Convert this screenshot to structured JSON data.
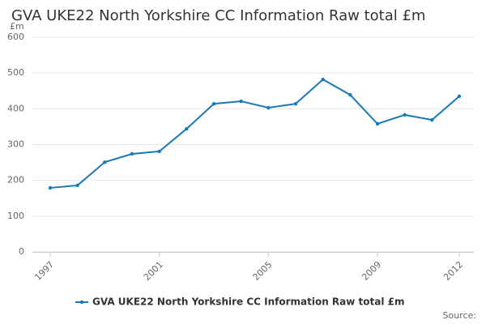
{
  "chart_data": {
    "type": "line",
    "title": "GVA UKE22 North Yorkshire CC Information Raw total £m",
    "y_unit": "£m",
    "source_label": "Source:",
    "x": [
      1997,
      1998,
      1999,
      2000,
      2001,
      2002,
      2003,
      2004,
      2005,
      2006,
      2007,
      2008,
      2009,
      2010,
      2011,
      2012
    ],
    "series": [
      {
        "name": "GVA UKE22 North Yorkshire CC Information Raw total £m",
        "color": "#1a7ab8",
        "values": [
          179,
          186,
          251,
          274,
          281,
          344,
          414,
          421,
          403,
          414,
          482,
          439,
          358,
          383,
          369,
          435
        ]
      }
    ],
    "xlim": [
      1997,
      2012
    ],
    "xticks": [
      1997,
      2001,
      2005,
      2009,
      2012
    ],
    "ylim": [
      0,
      600
    ],
    "yticks": [
      0,
      100,
      200,
      300,
      400,
      500,
      600
    ],
    "grid": true
  }
}
